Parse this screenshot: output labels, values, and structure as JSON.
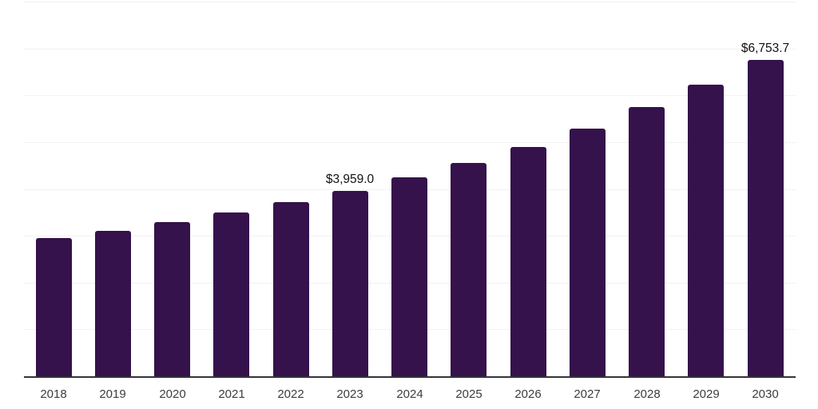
{
  "chart_data": {
    "type": "bar",
    "title": "",
    "xlabel": "",
    "ylabel": "",
    "categories": [
      "2018",
      "2019",
      "2020",
      "2021",
      "2022",
      "2023",
      "2024",
      "2025",
      "2026",
      "2027",
      "2028",
      "2029",
      "2030"
    ],
    "values": [
      2950,
      3110,
      3290,
      3500,
      3720,
      3959.0,
      4250,
      4550,
      4890,
      5280,
      5740,
      6220,
      6753.7
    ],
    "data_labels": [
      {
        "category": "2023",
        "text": "$3,959.0"
      },
      {
        "category": "2030",
        "text": "$6,753.7"
      }
    ],
    "ylim": [
      0,
      8000
    ],
    "gridline_step": 1000,
    "grid": "horizontal",
    "legend": "none",
    "colors": {
      "bar": "#35124b",
      "axis_line": "#33333a",
      "gridline": "#f2f2f2",
      "tick_label": "#3c3c3c",
      "value_label": "#111111",
      "background": "#ffffff"
    }
  }
}
